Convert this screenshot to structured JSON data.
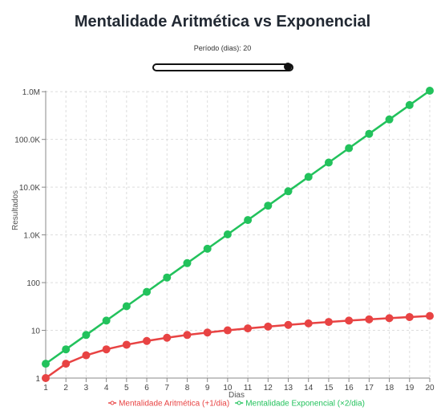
{
  "title": "Mentalidade Aritmética vs Exponencial",
  "control": {
    "label_prefix": "Período (dias): ",
    "value": 20,
    "min": 1,
    "max": 20
  },
  "chart_data": {
    "type": "line",
    "xlabel": "Dias",
    "ylabel": "Resultados",
    "yscale": "log",
    "xlim": [
      1,
      20
    ],
    "ylim": [
      1,
      1048576
    ],
    "grid": true,
    "legend_position": "bottom",
    "x": [
      1,
      2,
      3,
      4,
      5,
      6,
      7,
      8,
      9,
      10,
      11,
      12,
      13,
      14,
      15,
      16,
      17,
      18,
      19,
      20
    ],
    "x_ticks": [
      "1",
      "2",
      "3",
      "4",
      "5",
      "6",
      "7",
      "8",
      "9",
      "10",
      "11",
      "12",
      "13",
      "14",
      "15",
      "16",
      "17",
      "18",
      "19",
      "20"
    ],
    "y_ticks": [
      {
        "value": 1,
        "label": "1"
      },
      {
        "value": 10,
        "label": "10"
      },
      {
        "value": 100,
        "label": "100"
      },
      {
        "value": 1000,
        "label": "1.0K"
      },
      {
        "value": 10000,
        "label": "10.0K"
      },
      {
        "value": 100000,
        "label": "100.0K"
      },
      {
        "value": 1000000,
        "label": "1.0M"
      }
    ],
    "series": [
      {
        "name": "Mentalidade Aritmética (+1/dia)",
        "color": "#e84343",
        "values": [
          1,
          2,
          3,
          4,
          5,
          6,
          7,
          8,
          9,
          10,
          11,
          12,
          13,
          14,
          15,
          16,
          17,
          18,
          19,
          20
        ]
      },
      {
        "name": "Mentalidade Exponencial (×2/dia)",
        "color": "#22c25c",
        "values": [
          2,
          4,
          8,
          16,
          32,
          64,
          128,
          256,
          512,
          1024,
          2048,
          4096,
          8192,
          16384,
          32768,
          65536,
          131072,
          262144,
          524288,
          1048576
        ]
      }
    ]
  }
}
